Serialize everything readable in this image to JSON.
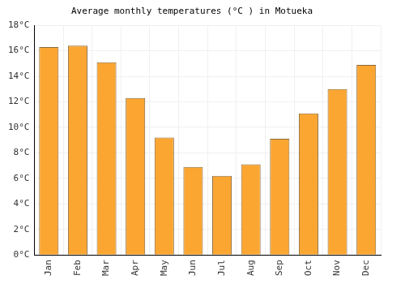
{
  "chart_data": {
    "type": "bar",
    "title": "Average monthly temperatures (°C ) in Motueka",
    "categories": [
      "Jan",
      "Feb",
      "Mar",
      "Apr",
      "May",
      "Jun",
      "Jul",
      "Aug",
      "Sep",
      "Oct",
      "Nov",
      "Dec"
    ],
    "values": [
      16.3,
      16.4,
      15.1,
      12.3,
      9.2,
      6.9,
      6.2,
      7.1,
      9.1,
      11.1,
      13.0,
      14.9
    ],
    "color": "#fca632",
    "ylim": [
      0,
      18
    ],
    "yticks": [
      {
        "value": 0,
        "label": "0°C"
      },
      {
        "value": 2,
        "label": "2°C"
      },
      {
        "value": 4,
        "label": "4°C"
      },
      {
        "value": 6,
        "label": "6°C"
      },
      {
        "value": 8,
        "label": "8°C"
      },
      {
        "value": 10,
        "label": "10°C"
      },
      {
        "value": 12,
        "label": "12°C"
      },
      {
        "value": 14,
        "label": "14°C"
      },
      {
        "value": 16,
        "label": "16°C"
      },
      {
        "value": 18,
        "label": "18°C"
      }
    ],
    "grid": true
  }
}
